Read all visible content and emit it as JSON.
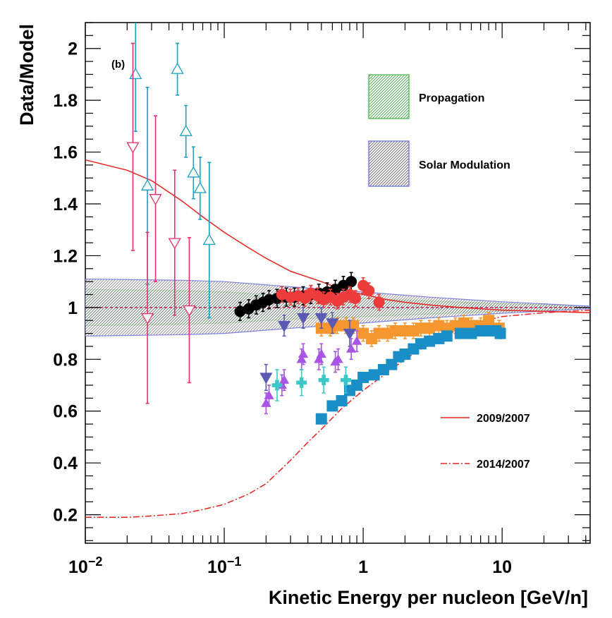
{
  "chart_data": {
    "type": "scatter",
    "panel_label": "(b)",
    "xlabel": "Kinetic Energy per nucleon [GeV/n]",
    "ylabel": "Data/Model",
    "x_scale": "log",
    "xlim": [
      0.01,
      43
    ],
    "ylim": [
      0.09,
      2.1
    ],
    "x_ticks": [
      {
        "value": 0.01,
        "base": "10",
        "exp": "−2"
      },
      {
        "value": 0.1,
        "base": "10",
        "exp": "−1"
      },
      {
        "value": 1,
        "base": "1",
        "exp": ""
      },
      {
        "value": 10,
        "base": "10",
        "exp": ""
      }
    ],
    "y_ticks": [
      {
        "value": 0.2,
        "label": "0.2"
      },
      {
        "value": 0.4,
        "label": "0.4"
      },
      {
        "value": 0.6,
        "label": "0.6"
      },
      {
        "value": 0.8,
        "label": "0.8"
      },
      {
        "value": 1.0,
        "label": "1"
      },
      {
        "value": 1.2,
        "label": "1.2"
      },
      {
        "value": 1.4,
        "label": "1.4"
      },
      {
        "value": 1.6,
        "label": "1.6"
      },
      {
        "value": 1.8,
        "label": "1.8"
      },
      {
        "value": 2.0,
        "label": "2"
      }
    ],
    "bands": [
      {
        "name": "Propagation",
        "color": "#5fbf5f",
        "points": [
          [
            0.01,
            0.93,
            1.07
          ],
          [
            0.05,
            0.935,
            1.065
          ],
          [
            0.1,
            0.94,
            1.06
          ],
          [
            0.3,
            0.955,
            1.045
          ],
          [
            1,
            0.965,
            1.035
          ],
          [
            3,
            0.975,
            1.025
          ],
          [
            10,
            0.985,
            1.015
          ],
          [
            43,
            0.995,
            1.005
          ]
        ]
      },
      {
        "name": "Solar Modulation",
        "color": "#8080e0",
        "points": [
          [
            0.01,
            0.89,
            1.11
          ],
          [
            0.05,
            0.895,
            1.105
          ],
          [
            0.1,
            0.9,
            1.1
          ],
          [
            0.3,
            0.92,
            1.08
          ],
          [
            1,
            0.94,
            1.06
          ],
          [
            3,
            0.96,
            1.04
          ],
          [
            10,
            0.978,
            1.022
          ],
          [
            43,
            0.995,
            1.005
          ]
        ]
      }
    ],
    "curves": [
      {
        "name": "2009/2007",
        "style": "solid",
        "color": "#e8231e",
        "points": [
          [
            0.01,
            1.57
          ],
          [
            0.02,
            1.53
          ],
          [
            0.03,
            1.49
          ],
          [
            0.05,
            1.41
          ],
          [
            0.07,
            1.35
          ],
          [
            0.1,
            1.29
          ],
          [
            0.15,
            1.23
          ],
          [
            0.2,
            1.19
          ],
          [
            0.3,
            1.14
          ],
          [
            0.5,
            1.1
          ],
          [
            0.7,
            1.07
          ],
          [
            1,
            1.05
          ],
          [
            1.5,
            1.03
          ],
          [
            2,
            1.02
          ],
          [
            3,
            1.01
          ],
          [
            5,
            1.0
          ],
          [
            10,
            0.99
          ],
          [
            20,
            0.985
          ],
          [
            43,
            0.98
          ]
        ]
      },
      {
        "name": "2014/2007",
        "style": "dashed",
        "color": "#e8231e",
        "points": [
          [
            0.01,
            0.19
          ],
          [
            0.02,
            0.19
          ],
          [
            0.03,
            0.195
          ],
          [
            0.05,
            0.205
          ],
          [
            0.07,
            0.22
          ],
          [
            0.1,
            0.24
          ],
          [
            0.15,
            0.28
          ],
          [
            0.2,
            0.32
          ],
          [
            0.3,
            0.41
          ],
          [
            0.4,
            0.48
          ],
          [
            0.5,
            0.53
          ],
          [
            0.7,
            0.61
          ],
          [
            1,
            0.68
          ],
          [
            1.5,
            0.75
          ],
          [
            2,
            0.8
          ],
          [
            3,
            0.86
          ],
          [
            5,
            0.92
          ],
          [
            7,
            0.945
          ],
          [
            10,
            0.965
          ],
          [
            20,
            0.98
          ],
          [
            43,
            0.99
          ]
        ]
      }
    ],
    "series": [
      {
        "name": "open-up-triangle-cyan",
        "marker": "tri-up",
        "filled": false,
        "color": "#1aa0c0",
        "points": [
          [
            0.023,
            1.9,
            0.22
          ],
          [
            0.028,
            1.47,
            0.38
          ],
          [
            0.046,
            1.92,
            0.1
          ],
          [
            0.053,
            1.68,
            0.1
          ],
          [
            0.06,
            1.52,
            0.1
          ],
          [
            0.067,
            1.46,
            0.12
          ],
          [
            0.078,
            1.26,
            0.3
          ]
        ]
      },
      {
        "name": "open-down-triangle-pink",
        "marker": "tri-down",
        "filled": false,
        "color": "#e83070",
        "points": [
          [
            0.022,
            1.62,
            0.4
          ],
          [
            0.028,
            0.96,
            0.33
          ],
          [
            0.032,
            1.42,
            0.32
          ],
          [
            0.044,
            1.25,
            0.28
          ],
          [
            0.056,
            0.99,
            0.28
          ]
        ]
      },
      {
        "name": "filled-circle-black",
        "marker": "circle",
        "filled": true,
        "color": "#000000",
        "points": [
          [
            0.13,
            0.985,
            0.035
          ],
          [
            0.15,
            0.995,
            0.035
          ],
          [
            0.17,
            1.01,
            0.035
          ],
          [
            0.19,
            1.02,
            0.035
          ],
          [
            0.21,
            1.03,
            0.035
          ],
          [
            0.24,
            1.035,
            0.035
          ],
          [
            0.28,
            1.04,
            0.035
          ],
          [
            0.32,
            1.04,
            0.035
          ],
          [
            0.37,
            1.045,
            0.035
          ],
          [
            0.42,
            1.05,
            0.035
          ],
          [
            0.48,
            1.055,
            0.035
          ],
          [
            0.55,
            1.06,
            0.035
          ],
          [
            0.63,
            1.07,
            0.035
          ],
          [
            0.72,
            1.085,
            0.035
          ],
          [
            0.82,
            1.1,
            0.035
          ]
        ]
      },
      {
        "name": "filled-circle-red",
        "marker": "circle",
        "filled": true,
        "color": "#ee3b3b",
        "points": [
          [
            0.26,
            1.05,
            0.03
          ],
          [
            0.3,
            1.04,
            0.03
          ],
          [
            0.34,
            1.045,
            0.03
          ],
          [
            0.38,
            1.035,
            0.03
          ],
          [
            0.42,
            1.055,
            0.03
          ],
          [
            0.47,
            1.045,
            0.03
          ],
          [
            0.52,
            1.03,
            0.03
          ],
          [
            0.58,
            1.04,
            0.03
          ],
          [
            0.65,
            1.025,
            0.03
          ],
          [
            0.72,
            1.04,
            0.03
          ],
          [
            0.8,
            1.05,
            0.03
          ],
          [
            0.88,
            1.035,
            0.03
          ],
          [
            1.0,
            1.085,
            0.03
          ],
          [
            1.1,
            1.065,
            0.03
          ],
          [
            1.3,
            1.02,
            0.03
          ]
        ]
      },
      {
        "name": "filled-square-orange",
        "marker": "square",
        "filled": true,
        "color": "#f5962e",
        "points": [
          [
            0.5,
            0.92,
            0.03
          ],
          [
            0.58,
            0.92,
            0.03
          ],
          [
            0.65,
            0.93,
            0.03
          ],
          [
            0.75,
            0.93,
            0.03
          ],
          [
            0.85,
            0.93,
            0.03
          ],
          [
            1.0,
            0.9,
            0.03
          ],
          [
            1.15,
            0.88,
            0.03
          ],
          [
            1.3,
            0.9,
            0.03
          ],
          [
            1.5,
            0.9,
            0.03
          ],
          [
            1.7,
            0.91,
            0.03
          ],
          [
            2.0,
            0.91,
            0.03
          ],
          [
            2.3,
            0.91,
            0.03
          ],
          [
            2.6,
            0.92,
            0.03
          ],
          [
            3.0,
            0.92,
            0.03
          ],
          [
            3.5,
            0.93,
            0.03
          ],
          [
            4.0,
            0.92,
            0.03
          ],
          [
            4.6,
            0.93,
            0.03
          ],
          [
            5.3,
            0.94,
            0.03
          ],
          [
            6.0,
            0.93,
            0.03
          ],
          [
            7.0,
            0.93,
            0.03
          ],
          [
            8.0,
            0.95,
            0.03
          ],
          [
            9.5,
            0.92,
            0.03
          ]
        ]
      },
      {
        "name": "filled-square-blue",
        "marker": "square",
        "filled": true,
        "color": "#1a8fc7",
        "points": [
          [
            0.5,
            0.57,
            0.01
          ],
          [
            0.6,
            0.62,
            0.01
          ],
          [
            0.7,
            0.64,
            0.01
          ],
          [
            0.8,
            0.68,
            0.01
          ],
          [
            0.9,
            0.7,
            0.01
          ],
          [
            1.0,
            0.73,
            0.01
          ],
          [
            1.2,
            0.74,
            0.01
          ],
          [
            1.4,
            0.76,
            0.01
          ],
          [
            1.6,
            0.78,
            0.01
          ],
          [
            1.8,
            0.81,
            0.01
          ],
          [
            2.0,
            0.82,
            0.01
          ],
          [
            2.3,
            0.84,
            0.01
          ],
          [
            2.6,
            0.86,
            0.01
          ],
          [
            3.0,
            0.87,
            0.01
          ],
          [
            3.5,
            0.88,
            0.01
          ],
          [
            4.0,
            0.89,
            0.01
          ],
          [
            5.0,
            0.9,
            0.01
          ],
          [
            6.0,
            0.9,
            0.01
          ],
          [
            7.0,
            0.91,
            0.01
          ],
          [
            8.0,
            0.91,
            0.01
          ],
          [
            9.0,
            0.91,
            0.01
          ],
          [
            9.7,
            0.9,
            0.02
          ]
        ]
      },
      {
        "name": "filled-down-triangle-slateblue",
        "marker": "tri-down",
        "filled": true,
        "color": "#5a5ab4",
        "points": [
          [
            0.2,
            0.73,
            0.05
          ],
          [
            0.27,
            0.93,
            0.04
          ],
          [
            0.37,
            0.96,
            0.04
          ],
          [
            0.5,
            0.96,
            0.04
          ],
          [
            0.6,
            0.94,
            0.04
          ],
          [
            0.8,
            0.9,
            0.05
          ]
        ]
      },
      {
        "name": "filled-up-triangle-violet",
        "marker": "tri-up",
        "filled": true,
        "color": "#a855e6",
        "points": [
          [
            0.2,
            0.63,
            0.04
          ],
          [
            0.21,
            0.66,
            0.04
          ],
          [
            0.26,
            0.7,
            0.04
          ],
          [
            0.27,
            0.72,
            0.04
          ],
          [
            0.36,
            0.8,
            0.04
          ],
          [
            0.37,
            0.82,
            0.04
          ],
          [
            0.48,
            0.8,
            0.04
          ],
          [
            0.5,
            0.82,
            0.04
          ],
          [
            0.63,
            0.79,
            0.04
          ],
          [
            0.66,
            0.8,
            0.04
          ],
          [
            0.82,
            0.84,
            0.04
          ],
          [
            0.9,
            0.87,
            0.04
          ]
        ]
      },
      {
        "name": "filled-cross-turquoise",
        "marker": "cross",
        "filled": true,
        "color": "#3cc8c8",
        "points": [
          [
            0.24,
            0.7,
            0.06
          ],
          [
            0.36,
            0.71,
            0.05
          ],
          [
            0.52,
            0.72,
            0.05
          ],
          [
            0.75,
            0.72,
            0.05
          ]
        ]
      }
    ],
    "legend": {
      "placement": "top-right",
      "entries": [
        {
          "label": "Propagation",
          "kind": "band",
          "color": "#5fbf5f"
        },
        {
          "label": "Solar Modulation",
          "kind": "band",
          "color": "#8080e0"
        },
        {
          "label": "2009/2007",
          "kind": "line",
          "style": "solid",
          "color": "#e8231e"
        },
        {
          "label": "2014/2007",
          "kind": "line",
          "style": "dashed",
          "color": "#e8231e"
        }
      ]
    },
    "reference_line": {
      "y": 1.0,
      "style": "dashed",
      "color": "#c2185b"
    }
  }
}
